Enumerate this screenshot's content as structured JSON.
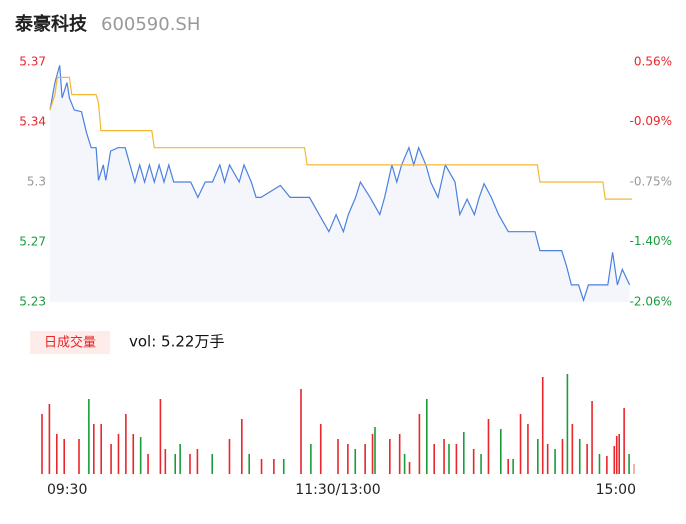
{
  "title": "泰豪科技",
  "subtitle": "600590.SH",
  "chart_data": [
    {
      "type": "line",
      "xlim": [
        0,
        240
      ],
      "ylim": [
        5.23,
        5.37
      ],
      "yticks": [
        5.23,
        {
          "value": 5.265,
          "label": "5.27"
        },
        5.3,
        {
          "value": 5.335,
          "label": "5.34"
        },
        5.37
      ],
      "ytick_colors": [
        "#1a9c3b",
        "#1a9c3b",
        "#999999",
        "#e8262b",
        "#e8262b"
      ],
      "y2lim": [
        -2.06,
        0.56
      ],
      "y2ticks": [
        {
          "value": -2.06,
          "label": "-2.06%"
        },
        {
          "value": -1.4,
          "label": "-1.40%"
        },
        {
          "value": -0.75,
          "label": "-0.75%"
        },
        {
          "value": -0.09,
          "label": "-0.09%"
        },
        {
          "value": 0.56,
          "label": "0.56%"
        }
      ],
      "area_color": "#f4f6fc",
      "series": [
        {
          "color": "#4a80e0",
          "x": [
            0,
            2,
            4,
            5,
            7,
            8,
            10,
            13,
            15,
            17,
            19,
            20,
            22,
            23,
            25,
            28,
            31,
            33,
            35,
            37,
            39,
            41,
            43,
            45,
            47,
            49,
            51,
            54,
            58,
            61,
            64,
            67,
            70,
            72,
            74,
            78,
            80,
            83,
            85,
            87,
            95,
            99,
            107,
            111,
            115,
            118,
            121,
            123,
            126,
            128,
            132,
            136,
            138,
            141,
            143,
            145,
            148,
            150,
            152,
            155,
            157,
            160,
            163,
            167,
            169,
            172,
            175,
            177,
            179,
            182,
            185,
            189,
            195,
            200,
            202,
            206,
            211,
            213,
            215,
            218,
            220,
            222,
            230,
            232,
            234,
            236,
            239
          ],
          "values": [
            5.342,
            5.358,
            5.368,
            5.349,
            5.358,
            5.349,
            5.342,
            5.341,
            5.329,
            5.32,
            5.32,
            5.301,
            5.31,
            5.301,
            5.318,
            5.32,
            5.32,
            5.31,
            5.3,
            5.31,
            5.3,
            5.31,
            5.3,
            5.31,
            5.3,
            5.31,
            5.3,
            5.3,
            5.3,
            5.291,
            5.3,
            5.3,
            5.31,
            5.3,
            5.31,
            5.3,
            5.31,
            5.3,
            5.291,
            5.291,
            5.298,
            5.291,
            5.291,
            5.281,
            5.271,
            5.281,
            5.271,
            5.281,
            5.291,
            5.3,
            5.291,
            5.281,
            5.291,
            5.31,
            5.3,
            5.31,
            5.32,
            5.31,
            5.32,
            5.31,
            5.3,
            5.291,
            5.31,
            5.3,
            5.281,
            5.29,
            5.281,
            5.291,
            5.299,
            5.291,
            5.281,
            5.271,
            5.271,
            5.271,
            5.26,
            5.26,
            5.26,
            5.251,
            5.24,
            5.24,
            5.231,
            5.24,
            5.24,
            5.259,
            5.24,
            5.249,
            5.24
          ]
        },
        {
          "color": "#f5b731",
          "x": [
            0,
            2,
            3,
            8,
            9,
            19,
            20,
            21,
            42,
            43,
            105,
            106,
            201,
            202,
            228,
            229,
            240
          ],
          "values": [
            5.342,
            5.351,
            5.361,
            5.361,
            5.351,
            5.351,
            5.346,
            5.33,
            5.33,
            5.32,
            5.32,
            5.31,
            5.31,
            5.3,
            5.3,
            5.29,
            5.29
          ]
        }
      ]
    },
    {
      "type": "bar",
      "button": "日成交量",
      "volume_label": "vol: 5.22万手",
      "xlim": [
        0,
        240
      ],
      "xticks": [
        {
          "value": 0,
          "label": "09:30"
        },
        {
          "value": 120,
          "label": "11:30/13:00"
        },
        {
          "value": 240,
          "label": "15:00"
        }
      ],
      "ylim": [
        0,
        100
      ],
      "x": [
        0,
        3,
        6,
        9,
        15,
        19,
        21,
        24,
        28,
        31,
        34,
        37,
        40,
        43,
        48,
        50,
        54,
        56,
        60,
        63,
        69,
        76,
        81,
        84,
        89,
        94,
        98,
        105,
        109,
        113,
        120,
        124,
        127,
        131,
        134,
        135,
        141,
        145,
        147,
        149,
        153,
        156,
        159,
        163,
        165,
        168,
        171,
        175,
        178,
        181,
        186,
        189,
        191,
        194,
        197,
        201,
        203,
        205,
        208,
        211,
        213,
        215,
        218,
        221,
        223,
        226,
        229,
        232,
        233,
        234,
        236,
        238,
        240
      ],
      "values": [
        60,
        70,
        40,
        35,
        35,
        75,
        50,
        50,
        30,
        40,
        60,
        40,
        37,
        20,
        75,
        25,
        20,
        30,
        20,
        25,
        20,
        35,
        55,
        20,
        15,
        15,
        15,
        85,
        30,
        50,
        35,
        30,
        25,
        30,
        40,
        47,
        35,
        40,
        20,
        12,
        60,
        75,
        30,
        35,
        30,
        30,
        42,
        25,
        20,
        55,
        45,
        15,
        15,
        60,
        50,
        35,
        97,
        30,
        25,
        35,
        100,
        50,
        35,
        30,
        73,
        20,
        18,
        28,
        38,
        40,
        66,
        20,
        10
      ],
      "colors": [
        "#e8262b",
        "#e8262b",
        "#e8262b",
        "#e8262b",
        "#e8262b",
        "#1a9c3b",
        "#e8262b",
        "#e8262b",
        "#e8262b",
        "#e8262b",
        "#e8262b",
        "#e8262b",
        "#1a9c3b",
        "#e8262b",
        "#e8262b",
        "#e8262b",
        "#1a9c3b",
        "#1a9c3b",
        "#e8262b",
        "#e8262b",
        "#1a9c3b",
        "#e8262b",
        "#e8262b",
        "#1a9c3b",
        "#e8262b",
        "#e8262b",
        "#1a9c3b",
        "#e8262b",
        "#1a9c3b",
        "#e8262b",
        "#e8262b",
        "#e8262b",
        "#1a9c3b",
        "#e8262b",
        "#e8262b",
        "#1a9c3b",
        "#e8262b",
        "#e8262b",
        "#1a9c3b",
        "#e8262b",
        "#e8262b",
        "#1a9c3b",
        "#e8262b",
        "#e8262b",
        "#1a9c3b",
        "#e8262b",
        "#1a9c3b",
        "#e8262b",
        "#1a9c3b",
        "#e8262b",
        "#1a9c3b",
        "#e8262b",
        "#1a9c3b",
        "#e8262b",
        "#e8262b",
        "#1a9c3b",
        "#e8262b",
        "#e8262b",
        "#1a9c3b",
        "#e8262b",
        "#1a9c3b",
        "#e8262b",
        "#1a9c3b",
        "#e8262b",
        "#e8262b",
        "#1a9c3b",
        "#e8262b",
        "#e8262b",
        "#e8262b",
        "#e8262b",
        "#e8262b",
        "#1a9c3b",
        "#f0a0a0"
      ]
    }
  ]
}
